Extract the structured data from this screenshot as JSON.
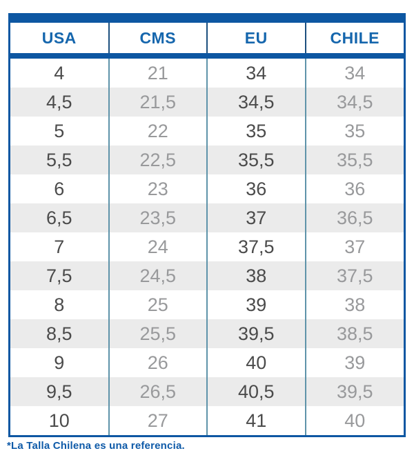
{
  "chart_data": {
    "type": "table",
    "columns": [
      "USA",
      "CMS",
      "EU",
      "CHILE"
    ],
    "rows": [
      [
        "4",
        "21",
        "34",
        "34"
      ],
      [
        "4,5",
        "21,5",
        "34,5",
        "34,5"
      ],
      [
        "5",
        "22",
        "35",
        "35"
      ],
      [
        "5,5",
        "22,5",
        "35,5",
        "35,5"
      ],
      [
        "6",
        "23",
        "36",
        "36"
      ],
      [
        "6,5",
        "23,5",
        "37",
        "36,5"
      ],
      [
        "7",
        "24",
        "37,5",
        "37"
      ],
      [
        "7,5",
        "24,5",
        "38",
        "37,5"
      ],
      [
        "8",
        "25",
        "39",
        "38"
      ],
      [
        "8,5",
        "25,5",
        "39,5",
        "38,5"
      ],
      [
        "9",
        "26",
        "40",
        "39"
      ],
      [
        "9,5",
        "26,5",
        "40,5",
        "39,5"
      ],
      [
        "10",
        "27",
        "41",
        "40"
      ]
    ],
    "layout_hints": {
      "dark_value_columns": [
        0,
        2
      ],
      "light_value_columns": [
        1,
        3
      ],
      "striped_rows": true
    }
  },
  "footnote": {
    "text": "*La Talla Chilena es una referencia."
  },
  "colors": {
    "bar_blue": "#0d57a2",
    "header_text_blue": "#1566ad",
    "header_divider": "#1c4f7e",
    "body_divider": "#5e93a9",
    "stripe_gray": "#ebebeb",
    "value_dark_gray": "#4b4b4b",
    "value_light_gray": "#98999b",
    "footnote_blue": "#0e5aa8"
  }
}
